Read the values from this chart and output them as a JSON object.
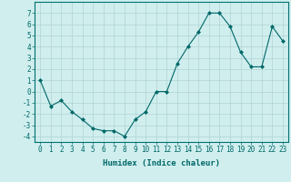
{
  "x": [
    0,
    1,
    2,
    3,
    4,
    5,
    6,
    7,
    8,
    9,
    10,
    11,
    12,
    13,
    14,
    15,
    16,
    17,
    18,
    19,
    20,
    21,
    22,
    23
  ],
  "y": [
    1,
    -1.3,
    -0.8,
    -1.8,
    -2.5,
    -3.3,
    -3.5,
    -3.5,
    -4.0,
    -2.5,
    -1.8,
    0,
    0,
    2.5,
    4.0,
    5.3,
    7.0,
    7.0,
    5.8,
    3.5,
    2.2,
    2.2,
    5.8,
    4.5
  ],
  "xlabel": "Humidex (Indice chaleur)",
  "ylim": [
    -4.5,
    8
  ],
  "xlim": [
    -0.5,
    23.5
  ],
  "line_color": "#006868",
  "marker": "D",
  "marker_size": 2,
  "bg_color": "#d0eeee",
  "grid_color": "#b0d4d4",
  "tick_label_size": 5.5,
  "xlabel_size": 6.5,
  "yticks": [
    -4,
    -3,
    -2,
    -1,
    0,
    1,
    2,
    3,
    4,
    5,
    6,
    7
  ],
  "xticks": [
    0,
    1,
    2,
    3,
    4,
    5,
    6,
    7,
    8,
    9,
    10,
    11,
    12,
    13,
    14,
    15,
    16,
    17,
    18,
    19,
    20,
    21,
    22,
    23
  ],
  "spine_color": "#007070",
  "tick_color": "#006868"
}
